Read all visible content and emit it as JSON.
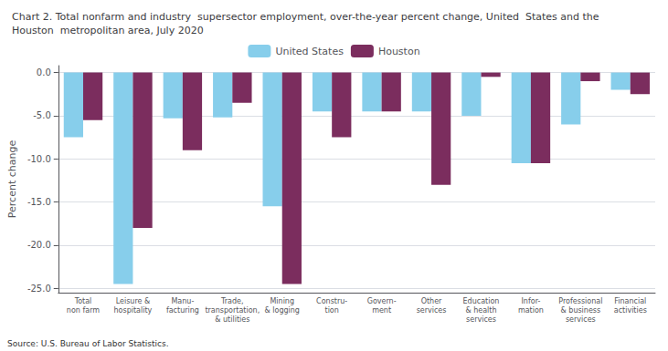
{
  "chart_data": {
    "type": "bar",
    "title": "Chart 2. Total nonfarm and industry  supersector employment, over-the-year percent change, United  States and the\nHouston  metropolitan area, July 2020",
    "categories": [
      "Total\nnon farm",
      "Leisure &\nhospitality",
      "Manu-\nfacturing",
      "Trade,\ntransportation,\n& utilities",
      "Mining\n& logging",
      "Constru-\ntion",
      "Govern-\nment",
      "Other\nservices",
      "Education\n& health\nservices",
      "Infor-\nmation",
      "Professional\n& business\nservices",
      "Financial\nactivities"
    ],
    "series": [
      {
        "name": "United States",
        "color": "#87CEEB",
        "values": [
          -7.5,
          -24.5,
          -5.3,
          -5.2,
          -15.5,
          -4.5,
          -4.5,
          -4.5,
          -5.0,
          -10.5,
          -6.0,
          -2.0
        ]
      },
      {
        "name": "Houston",
        "color": "#7B2D5E",
        "values": [
          -5.5,
          -18.0,
          -9.0,
          -3.5,
          -24.5,
          -7.5,
          -4.5,
          -13.0,
          -0.5,
          -10.5,
          -1.0,
          -2.5
        ]
      }
    ],
    "ylabel": "Percent change",
    "ylim": [
      -25.5,
      0.8
    ],
    "yticks": [
      {
        "value": 0.0,
        "label": "0.0"
      },
      {
        "value": -5.0,
        "label": "-5.0"
      },
      {
        "value": -10.0,
        "label": "-10.0"
      },
      {
        "value": -15.0,
        "label": "-15.0"
      },
      {
        "value": -20.0,
        "label": "-20.0"
      },
      {
        "value": -25.0,
        "label": "-25.0"
      }
    ],
    "grid": true,
    "legend": "top",
    "annotations": [
      "Source: U.S. Bureau of Labor Statistics."
    ]
  }
}
